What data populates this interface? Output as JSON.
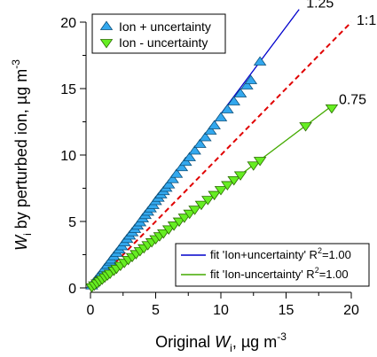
{
  "chart_data": {
    "type": "scatter",
    "xlabel": {
      "main": "Original ",
      "var": "W",
      "sub": "i",
      "unit": ", µg m",
      "sup": "-3"
    },
    "ylabel": {
      "var": "W",
      "sub": "i",
      "main": " by perturbed ion, µg m",
      "sup": "-3"
    },
    "xlim": [
      0,
      20
    ],
    "ylim": [
      0,
      20
    ],
    "xticks": [
      0,
      5,
      10,
      15,
      20
    ],
    "yticks": [
      0,
      5,
      10,
      15,
      20
    ],
    "grid": false,
    "legend_top": {
      "placement": "top-left",
      "entries": [
        {
          "label": "Ion + uncertainty",
          "series": 0
        },
        {
          "label": "Ion - uncertainty",
          "series": 1
        }
      ]
    },
    "legend_bottom": {
      "placement": "bottom-right",
      "entries": [
        {
          "label": "fit 'Ion+uncertainty' R",
          "sup": "2",
          "value": "=1.00",
          "color": "#0000cc"
        },
        {
          "label": "fit 'Ion-uncertainty' R",
          "sup": "2",
          "value": "=1.00",
          "color": "#44aa00"
        }
      ]
    },
    "reference_line": {
      "label": "1:1",
      "slope": 1.0,
      "color": "#e00000",
      "x_range": [
        0,
        20
      ]
    },
    "fit_lines": [
      {
        "label": "1.25",
        "slope": 1.31,
        "x_range": [
          0,
          16
        ],
        "color": "#0000cc"
      },
      {
        "label": "0.75",
        "slope": 0.74,
        "x_range": [
          0,
          18.5
        ],
        "color": "#44aa00"
      }
    ],
    "series": [
      {
        "name": "Ion + uncertainty",
        "marker": "triangle-up",
        "fill": "#33a8ee",
        "stroke": "#0b4f7a",
        "points": [
          [
            0.1,
            0.15
          ],
          [
            0.2,
            0.3
          ],
          [
            0.3,
            0.4
          ],
          [
            0.4,
            0.55
          ],
          [
            0.5,
            0.65
          ],
          [
            0.6,
            0.8
          ],
          [
            0.7,
            0.9
          ],
          [
            0.8,
            1.05
          ],
          [
            1.0,
            1.3
          ],
          [
            1.1,
            1.45
          ],
          [
            1.3,
            1.7
          ],
          [
            1.5,
            1.95
          ],
          [
            1.6,
            2.1
          ],
          [
            1.8,
            2.35
          ],
          [
            2.0,
            2.6
          ],
          [
            2.2,
            2.85
          ],
          [
            2.4,
            3.1
          ],
          [
            2.6,
            3.4
          ],
          [
            2.8,
            3.65
          ],
          [
            3.0,
            3.9
          ],
          [
            3.2,
            4.15
          ],
          [
            3.4,
            4.4
          ],
          [
            3.6,
            4.65
          ],
          [
            3.8,
            4.9
          ],
          [
            4.0,
            5.2
          ],
          [
            4.2,
            5.45
          ],
          [
            4.4,
            5.7
          ],
          [
            4.6,
            5.95
          ],
          [
            4.8,
            6.2
          ],
          [
            5.0,
            6.5
          ],
          [
            5.2,
            6.75
          ],
          [
            5.4,
            7.0
          ],
          [
            5.6,
            7.25
          ],
          [
            5.8,
            7.5
          ],
          [
            6.0,
            7.75
          ],
          [
            6.3,
            8.15
          ],
          [
            6.6,
            8.55
          ],
          [
            7.0,
            9.05
          ],
          [
            7.3,
            9.45
          ],
          [
            7.6,
            9.8
          ],
          [
            8.0,
            10.3
          ],
          [
            8.4,
            10.8
          ],
          [
            8.8,
            11.3
          ],
          [
            9.2,
            11.8
          ],
          [
            9.5,
            12.2
          ],
          [
            10.0,
            12.8
          ],
          [
            10.5,
            13.4
          ],
          [
            11.0,
            14.0
          ],
          [
            11.5,
            14.6
          ],
          [
            12.0,
            15.2
          ],
          [
            12.3,
            15.6
          ],
          [
            13.0,
            17.0
          ]
        ]
      },
      {
        "name": "Ion - uncertainty",
        "marker": "triangle-down",
        "fill": "#66ee22",
        "stroke": "#2a6a00",
        "points": [
          [
            0.1,
            0.08
          ],
          [
            0.3,
            0.22
          ],
          [
            0.5,
            0.37
          ],
          [
            0.7,
            0.52
          ],
          [
            0.9,
            0.66
          ],
          [
            1.1,
            0.82
          ],
          [
            1.3,
            0.97
          ],
          [
            1.5,
            1.1
          ],
          [
            1.8,
            1.33
          ],
          [
            2.0,
            1.48
          ],
          [
            2.3,
            1.7
          ],
          [
            2.6,
            1.92
          ],
          [
            2.9,
            2.14
          ],
          [
            3.2,
            2.36
          ],
          [
            3.5,
            2.58
          ],
          [
            3.8,
            2.8
          ],
          [
            4.1,
            3.02
          ],
          [
            4.4,
            3.25
          ],
          [
            4.7,
            3.47
          ],
          [
            5.0,
            3.7
          ],
          [
            5.3,
            3.92
          ],
          [
            5.6,
            4.14
          ],
          [
            6.0,
            4.44
          ],
          [
            6.4,
            4.73
          ],
          [
            6.8,
            5.03
          ],
          [
            7.2,
            5.32
          ],
          [
            7.6,
            5.62
          ],
          [
            8.0,
            5.92
          ],
          [
            8.5,
            6.29
          ],
          [
            9.0,
            6.66
          ],
          [
            9.5,
            7.03
          ],
          [
            10.0,
            7.4
          ],
          [
            10.5,
            7.77
          ],
          [
            11.0,
            8.14
          ],
          [
            11.5,
            8.51
          ],
          [
            12.5,
            9.25
          ],
          [
            13.0,
            9.6
          ],
          [
            16.5,
            12.2
          ],
          [
            18.5,
            13.55
          ]
        ]
      }
    ]
  }
}
